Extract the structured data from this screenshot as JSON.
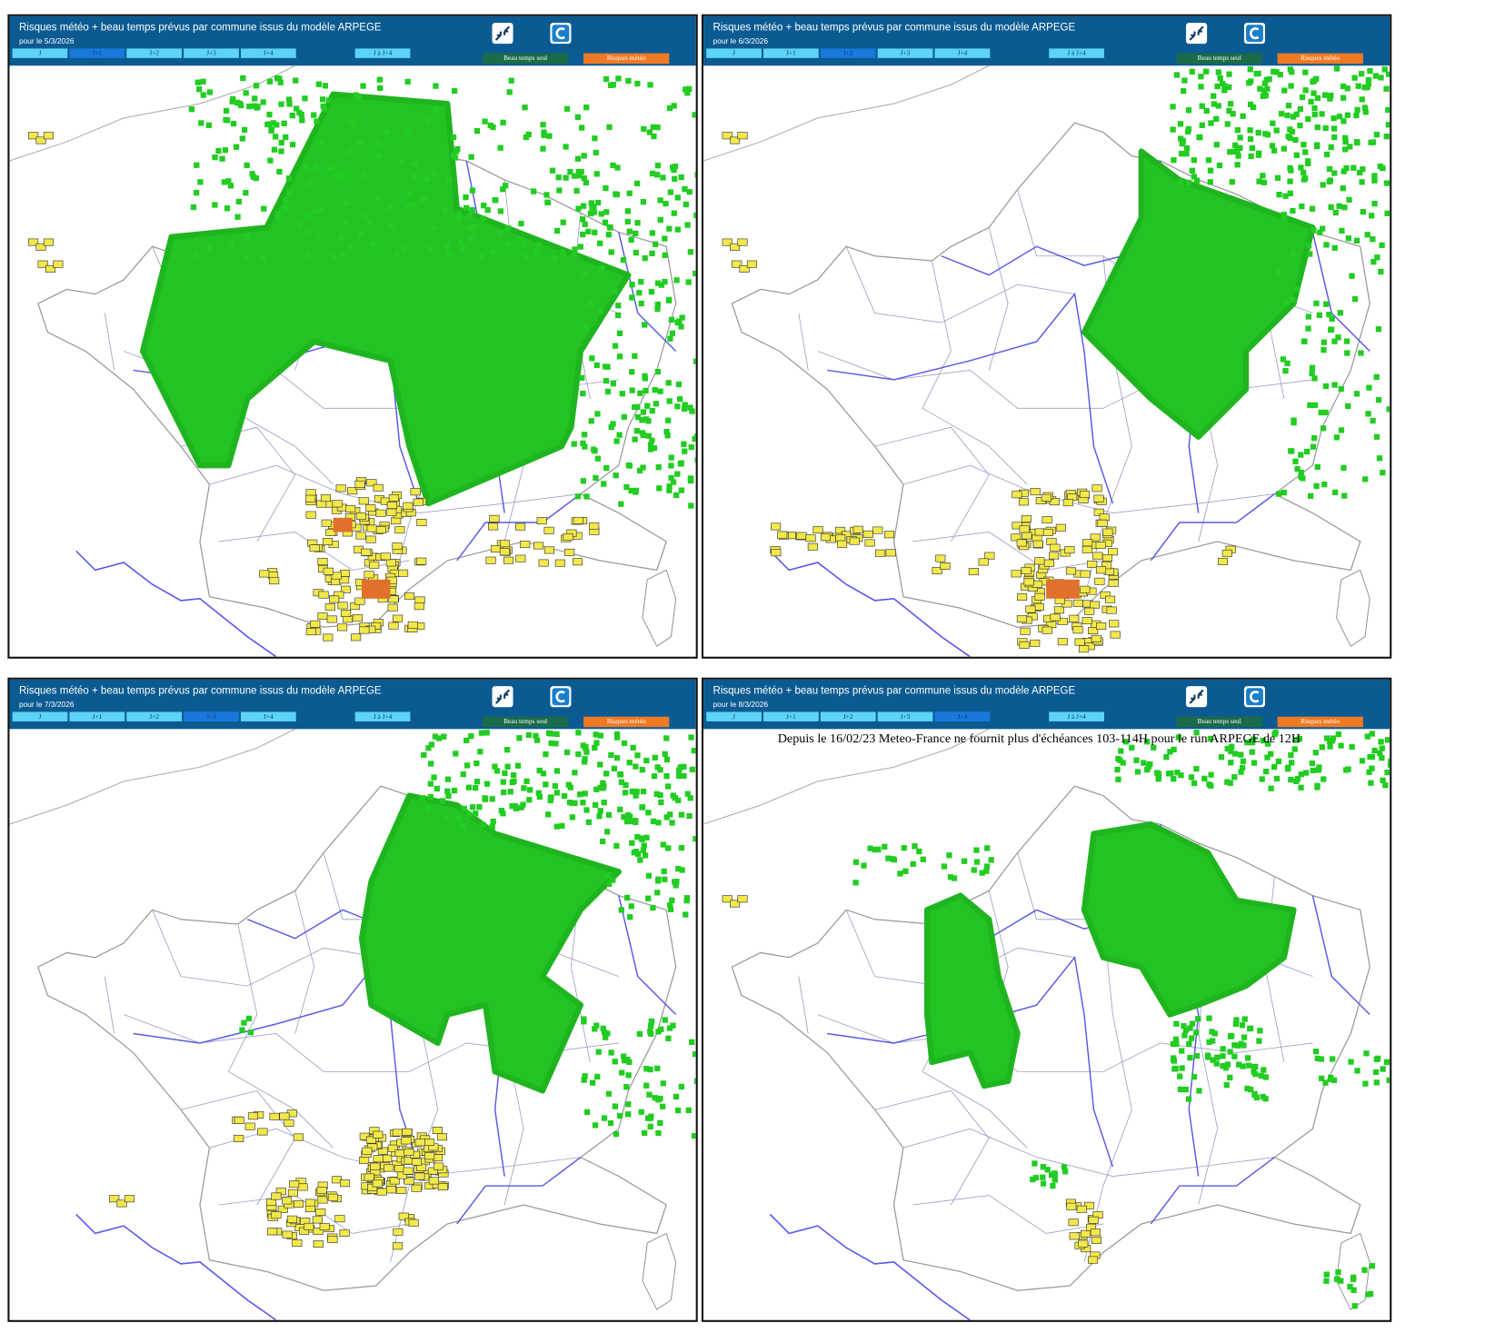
{
  "panels": [
    {
      "title": "Risques météo + beau temps prévus par commune issus du modèle ARPEGE",
      "date": "pour le 5/3/2026",
      "tabs": [
        "J",
        "J+1",
        "J+2",
        "J+3",
        "J+4",
        "J à J+4"
      ],
      "active_tab": 1,
      "buttons": [
        "Beau temps seul",
        "Risques météo"
      ]
    },
    {
      "title": "Risques météo + beau temps prévus par commune issus du modèle ARPEGE",
      "date": "pour le 6/3/2026",
      "tabs": [
        "J",
        "J+1",
        "J+2",
        "J+3",
        "J+4",
        "J à J+4"
      ],
      "active_tab": 2,
      "buttons": [
        "Beau temps seul",
        "Risques météo"
      ]
    },
    {
      "title": "Risques météo + beau temps prévus par commune issus du modèle ARPEGE",
      "date": "pour le 7/3/2026",
      "tabs": [
        "J",
        "J+1",
        "J+2",
        "J+3",
        "J+4",
        "J à J+4"
      ],
      "active_tab": 3,
      "buttons": [
        "Beau temps seul",
        "Risques météo"
      ]
    },
    {
      "title": "Risques météo + beau temps prévus par commune issus du modèle ARPEGE",
      "date": "pour le 8/3/2026",
      "tabs": [
        "J",
        "J+1",
        "J+2",
        "J+3",
        "J+4",
        "J à J+4"
      ],
      "active_tab": 4,
      "buttons": [
        "Beau temps seul",
        "Risques météo"
      ],
      "notice": "Depuis le 16/02/23 Meteo-France ne fournit plus d'échéances 103-114H pour le run ARPEGE de 12H"
    }
  ]
}
